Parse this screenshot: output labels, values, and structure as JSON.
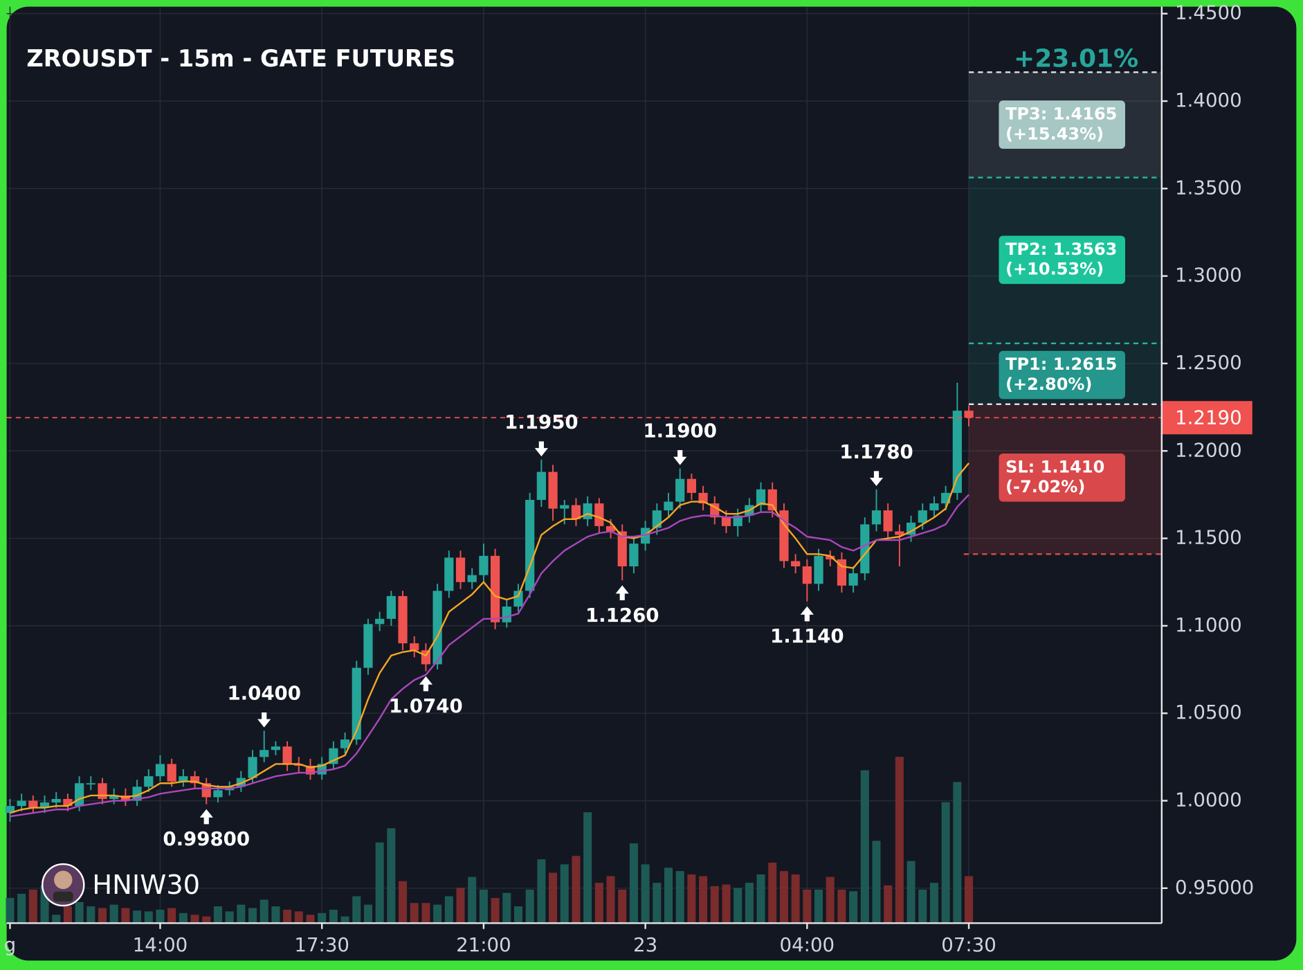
{
  "chart_data": {
    "type": "candlestick",
    "title": "ZROUSDT - 15m - GATE FUTURES",
    "watermark": "HNIW30",
    "gain_label": "+23.01%",
    "up_color": "#26a69a",
    "down_color": "#ef5350",
    "volume_up_color": "#1e5a55",
    "volume_down_color": "#7a2b2b",
    "grid": true,
    "ylim": [
      0.93,
      1.454
    ],
    "yticks": [
      {
        "value": 1.45,
        "label": "1.4500"
      },
      {
        "value": 1.4,
        "label": "1.4000"
      },
      {
        "value": 1.35,
        "label": "1.3500"
      },
      {
        "value": 1.3,
        "label": "1.3000"
      },
      {
        "value": 1.25,
        "label": "1.2500"
      },
      {
        "value": 1.2,
        "label": "1.2000"
      },
      {
        "value": 1.15,
        "label": "1.1500"
      },
      {
        "value": 1.1,
        "label": "1.1000"
      },
      {
        "value": 1.05,
        "label": "1.0500"
      },
      {
        "value": 1,
        "label": "1.0000"
      },
      {
        "value": 0.95,
        "label": "0.95000"
      }
    ],
    "xlim": [
      -0.29,
      99.7
    ],
    "xticks": [
      {
        "value": 0,
        "label": "g"
      },
      {
        "value": 13,
        "label": "14:00"
      },
      {
        "value": 27,
        "label": "17:30"
      },
      {
        "value": 41,
        "label": "21:00"
      },
      {
        "value": 55,
        "label": "23"
      },
      {
        "value": 69,
        "label": "04:00"
      },
      {
        "value": 83,
        "label": "07:30"
      }
    ],
    "open": [
      0.993,
      0.997,
      1.0,
      0.996,
      0.999,
      1.001,
      0.997,
      1.01,
      1.01,
      1.001,
      1.003,
      1.0,
      1.008,
      1.014,
      1.021,
      1.011,
      1.014,
      1.01,
      1.002,
      1.006,
      1.008,
      1.013,
      1.025,
      1.029,
      1.031,
      1.021,
      1.02,
      1.015,
      1.021,
      1.03,
      1.035,
      1.076,
      1.101,
      1.104,
      1.117,
      1.09,
      1.086,
      1.078,
      1.12,
      1.139,
      1.125,
      1.129,
      1.14,
      1.102,
      1.111,
      1.12,
      1.172,
      1.188,
      1.167,
      1.169,
      1.161,
      1.17,
      1.157,
      1.154,
      1.134,
      1.147,
      1.156,
      1.166,
      1.171,
      1.184,
      1.176,
      1.17,
      1.162,
      1.157,
      1.163,
      1.169,
      1.178,
      1.166,
      1.137,
      1.134,
      1.124,
      1.14,
      1.138,
      1.123,
      1.13,
      1.158,
      1.166,
      1.154,
      1.152,
      1.159,
      1.166,
      1.17,
      1.176,
      1.223
    ],
    "high": [
      1.001,
      1.004,
      1.003,
      1.003,
      1.005,
      1.004,
      1.014,
      1.014,
      1.013,
      1.007,
      1.007,
      1.012,
      1.018,
      1.026,
      1.024,
      1.018,
      1.017,
      1.013,
      1.009,
      1.011,
      1.017,
      1.029,
      1.04,
      1.034,
      1.034,
      1.025,
      1.024,
      1.025,
      1.034,
      1.039,
      1.08,
      1.104,
      1.108,
      1.12,
      1.12,
      1.094,
      1.09,
      1.124,
      1.143,
      1.143,
      1.133,
      1.147,
      1.144,
      1.115,
      1.124,
      1.176,
      1.195,
      1.192,
      1.172,
      1.173,
      1.174,
      1.173,
      1.161,
      1.158,
      1.151,
      1.16,
      1.17,
      1.176,
      1.19,
      1.187,
      1.18,
      1.174,
      1.166,
      1.167,
      1.173,
      1.182,
      1.182,
      1.17,
      1.141,
      1.138,
      1.144,
      1.143,
      1.142,
      1.134,
      1.162,
      1.178,
      1.17,
      1.158,
      1.163,
      1.17,
      1.174,
      1.18,
      1.239,
      1.226
    ],
    "low": [
      0.988,
      0.994,
      0.993,
      0.993,
      0.996,
      0.994,
      0.994,
      1.006,
      0.998,
      0.998,
      0.997,
      0.997,
      1.005,
      1.011,
      1.008,
      1.008,
      1.007,
      0.998,
      0.999,
      1.003,
      1.005,
      1.01,
      1.022,
      1.026,
      1.017,
      1.016,
      1.012,
      1.012,
      1.018,
      1.027,
      1.032,
      1.072,
      1.097,
      1.1,
      1.086,
      1.082,
      1.074,
      1.075,
      1.116,
      1.121,
      1.121,
      1.125,
      1.098,
      1.099,
      1.108,
      1.116,
      1.168,
      1.16,
      1.158,
      1.157,
      1.157,
      1.153,
      1.15,
      1.126,
      1.13,
      1.143,
      1.152,
      1.162,
      1.167,
      1.172,
      1.166,
      1.158,
      1.153,
      1.151,
      1.159,
      1.165,
      1.162,
      1.133,
      1.13,
      1.114,
      1.12,
      1.134,
      1.119,
      1.119,
      1.126,
      1.154,
      1.15,
      1.134,
      1.148,
      1.155,
      1.162,
      1.166,
      1.172,
      1.214
    ],
    "close": [
      0.997,
      1.0,
      0.996,
      0.999,
      1.001,
      0.997,
      1.01,
      1.01,
      1.001,
      1.003,
      1.0,
      1.008,
      1.014,
      1.021,
      1.011,
      1.014,
      1.01,
      1.002,
      1.006,
      1.008,
      1.013,
      1.025,
      1.029,
      1.031,
      1.021,
      1.02,
      1.015,
      1.021,
      1.03,
      1.035,
      1.076,
      1.101,
      1.104,
      1.117,
      1.09,
      1.086,
      1.078,
      1.12,
      1.139,
      1.125,
      1.129,
      1.14,
      1.102,
      1.111,
      1.12,
      1.172,
      1.188,
      1.167,
      1.169,
      1.161,
      1.17,
      1.157,
      1.154,
      1.134,
      1.147,
      1.156,
      1.166,
      1.171,
      1.184,
      1.176,
      1.17,
      1.162,
      1.157,
      1.163,
      1.169,
      1.178,
      1.166,
      1.137,
      1.134,
      1.124,
      1.14,
      1.138,
      1.123,
      1.13,
      1.158,
      1.166,
      1.154,
      1.152,
      1.159,
      1.166,
      1.17,
      1.176,
      1.223,
      1.219
    ],
    "volume": [
      30,
      35,
      40,
      45,
      10,
      20,
      25,
      20,
      18,
      22,
      18,
      15,
      14,
      16,
      18,
      12,
      10,
      8,
      20,
      14,
      22,
      18,
      28,
      20,
      16,
      14,
      10,
      12,
      16,
      8,
      32,
      22,
      96,
      113,
      50,
      24,
      24,
      22,
      32,
      42,
      55,
      40,
      30,
      36,
      20,
      40,
      76,
      60,
      70,
      80,
      132,
      48,
      56,
      40,
      95,
      70,
      48,
      66,
      62,
      58,
      56,
      44,
      46,
      42,
      48,
      58,
      72,
      62,
      58,
      40,
      40,
      55,
      40,
      38,
      182,
      98,
      45,
      198,
      74,
      40,
      48,
      144,
      168,
      56
    ],
    "lines": [
      {
        "color": "#f5a623",
        "values": [
          0.993,
          0.995,
          0.996,
          0.996,
          0.997,
          0.997,
          1.001,
          1.003,
          1.003,
          1.003,
          1.002,
          1.003,
          1.006,
          1.01,
          1.01,
          1.011,
          1.011,
          1.009,
          1.008,
          1.008,
          1.01,
          1.013,
          1.017,
          1.021,
          1.021,
          1.021,
          1.019,
          1.02,
          1.023,
          1.026,
          1.04,
          1.058,
          1.073,
          1.083,
          1.085,
          1.086,
          1.083,
          1.094,
          1.108,
          1.113,
          1.118,
          1.125,
          1.117,
          1.115,
          1.117,
          1.134,
          1.152,
          1.157,
          1.161,
          1.161,
          1.164,
          1.162,
          1.159,
          1.151,
          1.15,
          1.152,
          1.157,
          1.162,
          1.169,
          1.171,
          1.171,
          1.168,
          1.164,
          1.164,
          1.166,
          1.17,
          1.169,
          1.158,
          1.15,
          1.141,
          1.141,
          1.14,
          1.134,
          1.133,
          1.141,
          1.149,
          1.15,
          1.151,
          1.154,
          1.158,
          1.162,
          1.167,
          1.185,
          1.193
        ]
      },
      {
        "color": "#ab47bc",
        "values": [
          0.991,
          0.992,
          0.993,
          0.994,
          0.995,
          0.995,
          0.997,
          0.998,
          0.999,
          1.0,
          1.0,
          1.001,
          1.002,
          1.004,
          1.005,
          1.006,
          1.007,
          1.007,
          1.007,
          1.007,
          1.008,
          1.01,
          1.012,
          1.014,
          1.015,
          1.016,
          1.016,
          1.017,
          1.018,
          1.02,
          1.027,
          1.037,
          1.047,
          1.058,
          1.064,
          1.069,
          1.072,
          1.08,
          1.089,
          1.094,
          1.099,
          1.104,
          1.104,
          1.105,
          1.107,
          1.118,
          1.13,
          1.137,
          1.143,
          1.147,
          1.151,
          1.153,
          1.154,
          1.151,
          1.151,
          1.152,
          1.154,
          1.156,
          1.16,
          1.162,
          1.163,
          1.163,
          1.162,
          1.162,
          1.163,
          1.165,
          1.165,
          1.16,
          1.156,
          1.151,
          1.15,
          1.149,
          1.145,
          1.143,
          1.146,
          1.149,
          1.149,
          1.149,
          1.151,
          1.153,
          1.155,
          1.158,
          1.168,
          1.175
        ]
      }
    ],
    "annotations": [
      {
        "label": "0.99800",
        "x": 17,
        "value": 0.998
      },
      {
        "label": "1.0400",
        "x": 22,
        "value": 1.04
      },
      {
        "label": "1.0740",
        "x": 36,
        "value": 1.074
      },
      {
        "label": "1.1950",
        "x": 46,
        "value": 1.195
      },
      {
        "label": "1.1260",
        "x": 53,
        "value": 1.126
      },
      {
        "label": "1.1900",
        "x": 58,
        "value": 1.19
      },
      {
        "label": "1.1140",
        "x": 69,
        "value": 1.114
      },
      {
        "label": "1.1780",
        "x": 75,
        "value": 1.178
      }
    ],
    "current_price": {
      "value": 1.219,
      "label": "1.2190",
      "color": "#f0524f"
    },
    "entry_band_top": 1.2267,
    "levels": [
      {
        "label": "TP3: 1.4165",
        "change": "(+15.43%)",
        "value": 1.4165,
        "color": "#e0e6e6",
        "box": "#a6c7c4"
      },
      {
        "label": "TP2: 1.3563",
        "change": "(+10.53%)",
        "value": 1.3563,
        "color": "#2bb5a0",
        "box": "#1dc49b"
      },
      {
        "label": "TP1: 1.2615",
        "change": "(+2.80%)",
        "value": 1.2615,
        "color": "#2bb5a0",
        "box": "#24968b"
      },
      {
        "label": "SL: 1.1410",
        "change": "(-7.02%)",
        "value": 1.141,
        "color": "#e04a4a",
        "box": "#d9484a"
      }
    ]
  }
}
